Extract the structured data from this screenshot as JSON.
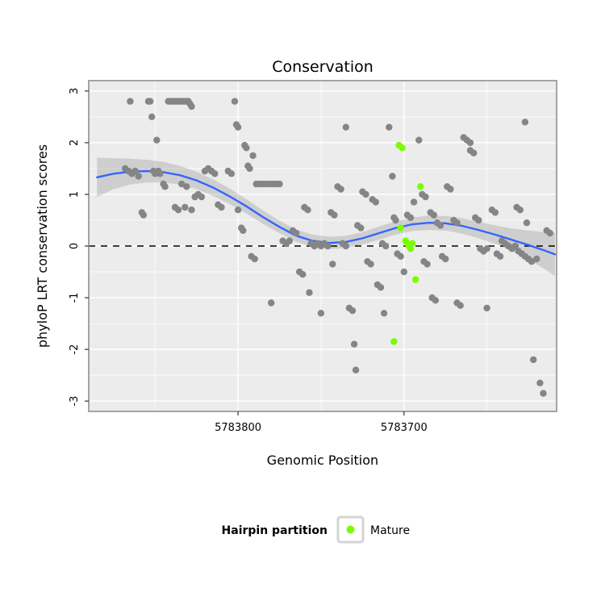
{
  "colors": {
    "panel_bg": "#ececec",
    "grid_major": "#ffffff",
    "grid_minor": "#ffffff",
    "panel_border": "#a3a3a3",
    "point_gray": "#858585",
    "point_green": "#7CFC00",
    "smooth_line": "#3366FF",
    "band": "#999999",
    "reference_line": "#000000",
    "legend_key_border": "#d4d4d4",
    "legend_key_fill": "#ffffff"
  },
  "chart_data": {
    "type": "scatter",
    "title": "Conservation",
    "xlabel": "Genomic Position",
    "ylabel": "phyloP LRT conservation scores",
    "x_axis": {
      "reversed": true,
      "range_left": 5783890,
      "range_right": 5783608,
      "ticks": [
        5783800,
        5783700
      ],
      "tick_labels": [
        "5783800",
        "5783700"
      ],
      "minor_ticks": [
        5783850,
        5783750,
        5783650
      ]
    },
    "y_axis": {
      "min": -3.2,
      "max": 3.2,
      "ticks": [
        -3,
        -2,
        -1,
        0,
        1,
        2,
        3
      ],
      "tick_labels": [
        "-3",
        "-2",
        "-1",
        "0",
        "1",
        "2",
        "3"
      ],
      "minor_ticks": [
        -2.5,
        -1.5,
        -0.5,
        0.5,
        1.5,
        2.5
      ]
    },
    "reference_line": {
      "y": 0,
      "style": "dashed"
    },
    "legend": {
      "title": "Hairpin partition",
      "position": "bottom",
      "entries": [
        {
          "label": "Mature",
          "color": "#7CFC00"
        }
      ]
    },
    "smooth": {
      "name": "loess-smooth",
      "x": [
        5783885,
        5783875,
        5783865,
        5783855,
        5783845,
        5783835,
        5783825,
        5783815,
        5783805,
        5783795,
        5783785,
        5783775,
        5783765,
        5783755,
        5783745,
        5783735,
        5783725,
        5783715,
        5783705,
        5783695,
        5783685,
        5783675,
        5783665,
        5783655,
        5783645,
        5783635,
        5783625,
        5783615,
        5783609
      ],
      "y": [
        1.33,
        1.4,
        1.44,
        1.45,
        1.43,
        1.37,
        1.27,
        1.13,
        0.96,
        0.77,
        0.56,
        0.37,
        0.2,
        0.1,
        0.06,
        0.08,
        0.15,
        0.25,
        0.35,
        0.42,
        0.45,
        0.44,
        0.39,
        0.31,
        0.22,
        0.12,
        0.02,
        -0.09,
        -0.16
      ],
      "band_upper": [
        1.71,
        1.7,
        1.69,
        1.67,
        1.63,
        1.55,
        1.44,
        1.29,
        1.11,
        0.91,
        0.69,
        0.49,
        0.32,
        0.22,
        0.18,
        0.2,
        0.27,
        0.38,
        0.48,
        0.55,
        0.59,
        0.58,
        0.54,
        0.47,
        0.4,
        0.34,
        0.3,
        0.27,
        0.26
      ],
      "band_lower": [
        0.95,
        1.1,
        1.19,
        1.23,
        1.23,
        1.19,
        1.1,
        0.97,
        0.81,
        0.63,
        0.43,
        0.25,
        0.08,
        -0.02,
        -0.06,
        -0.04,
        0.03,
        0.12,
        0.22,
        0.29,
        0.31,
        0.3,
        0.24,
        0.15,
        0.04,
        -0.1,
        -0.26,
        -0.45,
        -0.58
      ]
    },
    "series": [
      {
        "name": "hairpin-other",
        "color": "#858585",
        "points": [
          [
            5783868,
            1.5
          ],
          [
            5783866,
            1.45
          ],
          [
            5783865,
            2.8
          ],
          [
            5783864,
            1.4
          ],
          [
            5783862,
            1.45
          ],
          [
            5783860,
            1.35
          ],
          [
            5783858,
            0.65
          ],
          [
            5783857,
            0.6
          ],
          [
            5783854,
            2.8
          ],
          [
            5783853,
            2.8
          ],
          [
            5783852,
            2.5
          ],
          [
            5783851,
            1.45
          ],
          [
            5783850,
            1.4
          ],
          [
            5783849,
            2.05
          ],
          [
            5783848,
            1.45
          ],
          [
            5783847,
            1.4
          ],
          [
            5783845,
            1.2
          ],
          [
            5783844,
            1.15
          ],
          [
            5783842,
            2.8
          ],
          [
            5783841,
            2.8
          ],
          [
            5783840,
            2.8
          ],
          [
            5783839,
            2.8
          ],
          [
            5783838,
            2.8
          ],
          [
            5783837,
            2.8
          ],
          [
            5783836,
            2.8
          ],
          [
            5783835,
            2.8
          ],
          [
            5783834,
            2.8
          ],
          [
            5783833,
            2.8
          ],
          [
            5783832,
            2.8
          ],
          [
            5783831,
            2.8
          ],
          [
            5783830,
            2.8
          ],
          [
            5783829,
            2.75
          ],
          [
            5783828,
            2.7
          ],
          [
            5783838,
            0.75
          ],
          [
            5783836,
            0.7
          ],
          [
            5783832,
            0.75
          ],
          [
            5783828,
            0.7
          ],
          [
            5783834,
            1.2
          ],
          [
            5783831,
            1.15
          ],
          [
            5783826,
            0.95
          ],
          [
            5783824,
            1.0
          ],
          [
            5783822,
            0.95
          ],
          [
            5783820,
            1.45
          ],
          [
            5783818,
            1.5
          ],
          [
            5783816,
            1.45
          ],
          [
            5783814,
            1.4
          ],
          [
            5783812,
            0.8
          ],
          [
            5783810,
            0.75
          ],
          [
            5783806,
            1.45
          ],
          [
            5783804,
            1.4
          ],
          [
            5783802,
            2.8
          ],
          [
            5783801,
            2.35
          ],
          [
            5783800,
            2.3
          ],
          [
            5783800,
            0.7
          ],
          [
            5783798,
            0.35
          ],
          [
            5783797,
            0.3
          ],
          [
            5783796,
            1.95
          ],
          [
            5783795,
            1.9
          ],
          [
            5783794,
            1.55
          ],
          [
            5783793,
            1.5
          ],
          [
            5783792,
            -0.2
          ],
          [
            5783790,
            -0.25
          ],
          [
            5783791,
            1.75
          ],
          [
            5783789,
            1.2
          ],
          [
            5783787,
            1.2
          ],
          [
            5783785,
            1.2
          ],
          [
            5783783,
            1.2
          ],
          [
            5783781,
            1.2
          ],
          [
            5783779,
            1.2
          ],
          [
            5783777,
            1.2
          ],
          [
            5783775,
            1.2
          ],
          [
            5783780,
            -1.1
          ],
          [
            5783773,
            0.1
          ],
          [
            5783771,
            0.05
          ],
          [
            5783769,
            0.1
          ],
          [
            5783767,
            0.3
          ],
          [
            5783765,
            0.25
          ],
          [
            5783763,
            -0.5
          ],
          [
            5783761,
            -0.55
          ],
          [
            5783760,
            0.75
          ],
          [
            5783758,
            0.7
          ],
          [
            5783757,
            -0.9
          ],
          [
            5783756,
            0.05
          ],
          [
            5783754,
            0.0
          ],
          [
            5783752,
            0.05
          ],
          [
            5783750,
            0.0
          ],
          [
            5783748,
            0.05
          ],
          [
            5783746,
            0.0
          ],
          [
            5783750,
            -1.3
          ],
          [
            5783744,
            0.65
          ],
          [
            5783742,
            0.6
          ],
          [
            5783743,
            -0.35
          ],
          [
            5783740,
            1.15
          ],
          [
            5783738,
            1.1
          ],
          [
            5783737,
            0.05
          ],
          [
            5783735,
            0.0
          ],
          [
            5783735,
            2.3
          ],
          [
            5783733,
            -1.2
          ],
          [
            5783731,
            -1.25
          ],
          [
            5783730,
            -1.9
          ],
          [
            5783729,
            -2.4
          ],
          [
            5783728,
            0.4
          ],
          [
            5783726,
            0.35
          ],
          [
            5783725,
            1.05
          ],
          [
            5783723,
            1.0
          ],
          [
            5783722,
            -0.3
          ],
          [
            5783720,
            -0.35
          ],
          [
            5783719,
            0.9
          ],
          [
            5783717,
            0.85
          ],
          [
            5783716,
            -0.75
          ],
          [
            5783714,
            -0.8
          ],
          [
            5783713,
            0.05
          ],
          [
            5783711,
            0.0
          ],
          [
            5783712,
            -1.3
          ],
          [
            5783709,
            2.3
          ],
          [
            5783707,
            1.35
          ],
          [
            5783706,
            0.55
          ],
          [
            5783705,
            0.5
          ],
          [
            5783704,
            -0.15
          ],
          [
            5783702,
            -0.2
          ],
          [
            5783700,
            -0.5
          ],
          [
            5783698,
            0.6
          ],
          [
            5783696,
            0.55
          ],
          [
            5783694,
            0.85
          ],
          [
            5783691,
            2.05
          ],
          [
            5783689,
            1.0
          ],
          [
            5783687,
            0.95
          ],
          [
            5783688,
            -0.3
          ],
          [
            5783686,
            -0.35
          ],
          [
            5783684,
            0.65
          ],
          [
            5783682,
            0.6
          ],
          [
            5783683,
            -1.0
          ],
          [
            5783681,
            -1.05
          ],
          [
            5783680,
            0.45
          ],
          [
            5783678,
            0.4
          ],
          [
            5783677,
            -0.2
          ],
          [
            5783675,
            -0.25
          ],
          [
            5783674,
            1.15
          ],
          [
            5783672,
            1.1
          ],
          [
            5783670,
            0.5
          ],
          [
            5783668,
            0.45
          ],
          [
            5783668,
            -1.1
          ],
          [
            5783666,
            -1.15
          ],
          [
            5783664,
            2.1
          ],
          [
            5783662,
            2.05
          ],
          [
            5783660,
            2.0
          ],
          [
            5783660,
            1.85
          ],
          [
            5783658,
            1.8
          ],
          [
            5783657,
            0.55
          ],
          [
            5783655,
            0.5
          ],
          [
            5783654,
            -0.05
          ],
          [
            5783652,
            -0.1
          ],
          [
            5783650,
            -0.05
          ],
          [
            5783650,
            -1.2
          ],
          [
            5783647,
            0.7
          ],
          [
            5783645,
            0.65
          ],
          [
            5783644,
            -0.15
          ],
          [
            5783642,
            -0.2
          ],
          [
            5783641,
            0.1
          ],
          [
            5783639,
            0.05
          ],
          [
            5783637,
            0.0
          ],
          [
            5783635,
            -0.05
          ],
          [
            5783633,
            0.0
          ],
          [
            5783632,
            0.75
          ],
          [
            5783630,
            0.7
          ],
          [
            5783631,
            -0.1
          ],
          [
            5783629,
            -0.15
          ],
          [
            5783627,
            -0.2
          ],
          [
            5783627,
            2.4
          ],
          [
            5783626,
            0.45
          ],
          [
            5783625,
            -0.25
          ],
          [
            5783623,
            -0.3
          ],
          [
            5783622,
            -2.2
          ],
          [
            5783620,
            -0.25
          ],
          [
            5783618,
            -2.65
          ],
          [
            5783616,
            -2.85
          ],
          [
            5783614,
            0.3
          ],
          [
            5783612,
            0.25
          ]
        ]
      },
      {
        "name": "Mature",
        "color": "#7CFC00",
        "points": [
          [
            5783703,
            1.95
          ],
          [
            5783701,
            1.9
          ],
          [
            5783690,
            1.15
          ],
          [
            5783702,
            0.35
          ],
          [
            5783699,
            0.1
          ],
          [
            5783698,
            0.05
          ],
          [
            5783697,
            0.0
          ],
          [
            5783696,
            -0.05
          ],
          [
            5783695,
            0.05
          ],
          [
            5783693,
            -0.65
          ],
          [
            5783706,
            -1.85
          ]
        ]
      }
    ]
  }
}
